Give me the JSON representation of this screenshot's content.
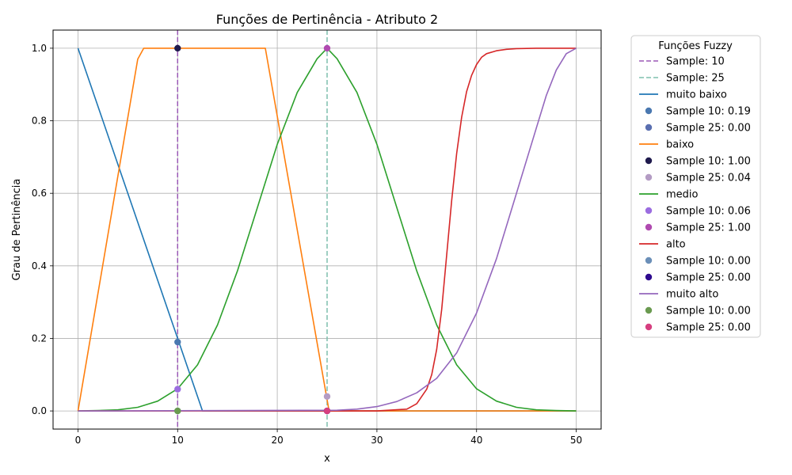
{
  "chart_data": {
    "type": "line",
    "title": "Funções de Pertinência - Atributo 2",
    "xlabel": "x",
    "ylabel": "Grau de Pertinência",
    "xlim": [
      -2.5,
      52.5
    ],
    "ylim": [
      -0.05,
      1.05
    ],
    "xticks": [
      0,
      10,
      20,
      30,
      40,
      50
    ],
    "yticks": [
      0.0,
      0.2,
      0.4,
      0.6,
      0.8,
      1.0
    ],
    "xtick_labels": [
      "0",
      "10",
      "20",
      "30",
      "40",
      "50"
    ],
    "ytick_labels": [
      "0.0",
      "0.2",
      "0.4",
      "0.6",
      "0.8",
      "1.0"
    ],
    "grid": true,
    "legend_title": "Funções Fuzzy",
    "legend_position": "outside-right",
    "vlines": [
      {
        "name": "Sample: 10",
        "x": 10,
        "color": "#9b59b6"
      },
      {
        "name": "Sample: 25",
        "x": 25,
        "color": "#7fbfae"
      }
    ],
    "series": [
      {
        "name": "muito baixo",
        "color": "#1f77b4",
        "x": [
          0,
          10,
          12,
          12.5,
          50
        ],
        "y": [
          1.0,
          0.2,
          0.04,
          0.0,
          0.0
        ]
      },
      {
        "name": "baixo",
        "color": "#ff7f0e",
        "x": [
          0,
          6,
          6.6,
          18.8,
          25.2,
          50
        ],
        "y": [
          0.0,
          0.97,
          1.0,
          1.0,
          0.0,
          0.0
        ]
      },
      {
        "name": "medio",
        "color": "#2ca02c",
        "x": [
          0,
          2,
          4,
          6,
          8,
          10,
          12,
          14,
          16,
          18,
          20,
          22,
          24,
          25,
          26,
          28,
          30,
          32,
          34,
          36,
          38,
          40,
          42,
          44,
          46,
          48,
          50
        ],
        "y": [
          0.0,
          0.001,
          0.003,
          0.01,
          0.027,
          0.061,
          0.127,
          0.237,
          0.386,
          0.56,
          0.735,
          0.878,
          0.971,
          1.0,
          0.971,
          0.878,
          0.735,
          0.56,
          0.386,
          0.237,
          0.127,
          0.061,
          0.027,
          0.01,
          0.003,
          0.001,
          0.0
        ]
      },
      {
        "name": "alto",
        "color": "#d62728",
        "x": [
          0,
          30,
          33,
          34,
          35,
          35.5,
          36,
          36.5,
          37,
          37.5,
          38,
          38.5,
          39,
          39.5,
          40,
          40.5,
          41,
          42,
          43,
          44,
          46,
          50
        ],
        "y": [
          0.0,
          0.0,
          0.005,
          0.02,
          0.06,
          0.1,
          0.17,
          0.28,
          0.43,
          0.58,
          0.71,
          0.81,
          0.88,
          0.925,
          0.955,
          0.975,
          0.985,
          0.993,
          0.997,
          0.999,
          1.0,
          1.0
        ]
      },
      {
        "name": "muito alto",
        "color": "#9467bd",
        "x": [
          0,
          26,
          28,
          30,
          32,
          34,
          36,
          38,
          40,
          42,
          44,
          46,
          47,
          48,
          49,
          50
        ],
        "y": [
          0.0,
          0.002,
          0.005,
          0.012,
          0.026,
          0.05,
          0.09,
          0.16,
          0.27,
          0.42,
          0.6,
          0.78,
          0.87,
          0.94,
          0.985,
          1.0
        ]
      }
    ],
    "sample_points": [
      {
        "label": "Sample 10: 0.19",
        "x": 10,
        "y": 0.19,
        "color": "#4a78b0"
      },
      {
        "label": "Sample 25: 0.00",
        "x": 25,
        "y": 0.0,
        "color": "#5a6fb0"
      },
      {
        "label": "Sample 10: 1.00",
        "x": 10,
        "y": 1.0,
        "color": "#1f1a4d"
      },
      {
        "label": "Sample 25: 0.04",
        "x": 25,
        "y": 0.04,
        "color": "#b49cc4"
      },
      {
        "label": "Sample 10: 0.06",
        "x": 10,
        "y": 0.06,
        "color": "#9b6de0"
      },
      {
        "label": "Sample 25: 1.00",
        "x": 25,
        "y": 1.0,
        "color": "#b04ab0"
      },
      {
        "label": "Sample 10: 0.00",
        "x": 10,
        "y": 0.0,
        "color": "#6b8fb8"
      },
      {
        "label": "Sample 25: 0.00",
        "x": 25,
        "y": 0.0,
        "color": "#2e0a8f"
      },
      {
        "label": "Sample 10: 0.00",
        "x": 10,
        "y": 0.0,
        "color": "#6a9a50"
      },
      {
        "label": "Sample 25: 0.00",
        "x": 25,
        "y": 0.0,
        "color": "#d63f80"
      }
    ],
    "legend_order": [
      {
        "kind": "vline",
        "ref": 0
      },
      {
        "kind": "vline",
        "ref": 1
      },
      {
        "kind": "series",
        "ref": 0
      },
      {
        "kind": "point",
        "ref": 0
      },
      {
        "kind": "point",
        "ref": 1
      },
      {
        "kind": "series",
        "ref": 1
      },
      {
        "kind": "point",
        "ref": 2
      },
      {
        "kind": "point",
        "ref": 3
      },
      {
        "kind": "series",
        "ref": 2
      },
      {
        "kind": "point",
        "ref": 4
      },
      {
        "kind": "point",
        "ref": 5
      },
      {
        "kind": "series",
        "ref": 3
      },
      {
        "kind": "point",
        "ref": 6
      },
      {
        "kind": "point",
        "ref": 7
      },
      {
        "kind": "series",
        "ref": 4
      },
      {
        "kind": "point",
        "ref": 8
      },
      {
        "kind": "point",
        "ref": 9
      }
    ]
  }
}
